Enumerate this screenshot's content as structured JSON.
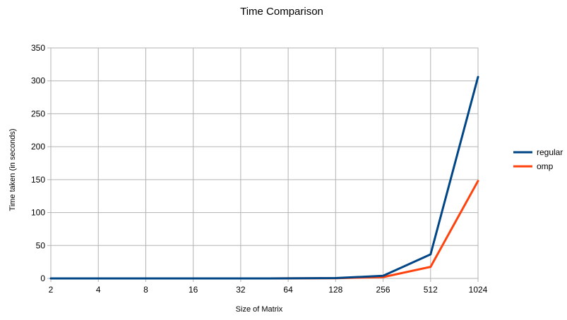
{
  "chart_data": {
    "type": "line",
    "title": "Time Comparison",
    "xlabel": "Size of Matrix",
    "ylabel": "Time taken (in seconds)",
    "categories": [
      "2",
      "4",
      "8",
      "16",
      "32",
      "64",
      "128",
      "256",
      "512",
      "1024"
    ],
    "ylim": [
      0,
      350
    ],
    "yticks": [
      0,
      50,
      100,
      150,
      200,
      250,
      300,
      350
    ],
    "grid": true,
    "legend_position": "right",
    "series": [
      {
        "name": "regular",
        "color": "#004586",
        "values": [
          0,
          0,
          0,
          0,
          0,
          0.1,
          0.5,
          4,
          36.5,
          306
        ]
      },
      {
        "name": "omp",
        "color": "#ff420e",
        "values": [
          0,
          0,
          0,
          0,
          0,
          0.1,
          0.3,
          2,
          17.5,
          148
        ]
      }
    ]
  }
}
